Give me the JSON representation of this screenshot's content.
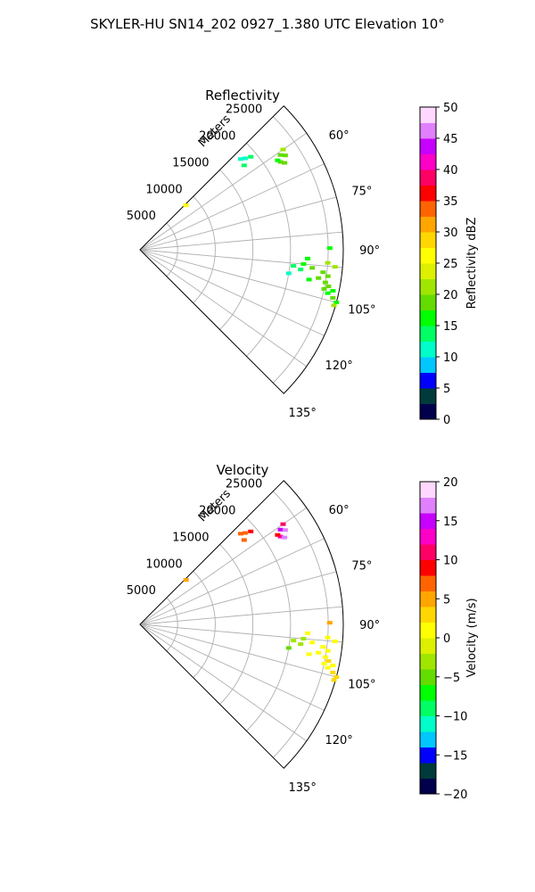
{
  "figure": {
    "suptitle": "SKYLER-HU  SN14_202  0927_1.380 UTC Elevation 10°"
  },
  "chart_data": [
    {
      "type": "scatter",
      "title": "Reflectivity",
      "radial_label": "Meters",
      "radial_ticks": [
        "5000",
        "10000",
        "15000",
        "20000",
        "25000"
      ],
      "radial_tick_values": [
        5000,
        10000,
        15000,
        20000,
        25000
      ],
      "angle_ticks": [
        "60°",
        "75°",
        "90°",
        "105°",
        "120°",
        "135°"
      ],
      "angle_tick_values": [
        60,
        75,
        90,
        105,
        120,
        135
      ],
      "angle_range": [
        45,
        135
      ],
      "range_max": 27000,
      "grid": true,
      "colorbar": {
        "label": "Reflectivity dBZ",
        "ticks": [
          "0",
          "5",
          "10",
          "15",
          "20",
          "25",
          "30",
          "35",
          "40",
          "45",
          "50"
        ],
        "range": [
          0,
          50
        ],
        "colors": [
          "#00004c",
          "#003a3a",
          "#0000ff",
          "#00c8ff",
          "#00ffc8",
          "#00ff64",
          "#00ff00",
          "#64dc00",
          "#a0e600",
          "#dcf000",
          "#ffff00",
          "#ffd700",
          "#ffa500",
          "#ff6400",
          "#ff0000",
          "#ff0064",
          "#ff00c8",
          "#c800ff",
          "#e080ff",
          "#ffd8ff"
        ]
      },
      "series": [
        {
          "points": [
            [
              49,
              18500,
              12
            ],
            [
              50,
              19200,
              13
            ],
            [
              48,
              18000,
              12
            ],
            [
              51,
              17800,
              13
            ]
          ]
        },
        {
          "points": [
            [
              56,
              22500,
              18
            ],
            [
              57,
              23000,
              19
            ],
            [
              58,
              22000,
              18
            ],
            [
              55,
              23200,
              20
            ],
            [
              57,
              21800,
              17
            ],
            [
              59,
              22400,
              18
            ]
          ]
        },
        {
          "points": [
            [
              46,
              8500,
              27
            ]
          ]
        },
        {
          "points": [
            [
              89.5,
              25200,
              15
            ]
          ]
        },
        {
          "points": [
            [
              93,
              22300,
              17
            ],
            [
              95,
              21800,
              16
            ],
            [
              96,
              23000,
              18
            ],
            [
              97,
              24500,
              19
            ],
            [
              94,
              25000,
              20
            ],
            [
              99,
              24000,
              18
            ],
            [
              97,
              21500,
              14
            ],
            [
              100,
              22800,
              17
            ],
            [
              98,
              25200,
              19
            ],
            [
              101,
              25500,
              18
            ],
            [
              95,
              26000,
              20
            ],
            [
              102,
              26200,
              17
            ],
            [
              96,
              20500,
              13
            ],
            [
              99,
              20000,
              12
            ],
            [
              100,
              25000,
              18
            ],
            [
              103,
              25600,
              17
            ],
            [
              102,
              25000,
              18
            ],
            [
              104,
              26400,
              19
            ],
            [
              105,
              27000,
              16
            ],
            [
              106,
              26800,
              22
            ]
          ]
        }
      ]
    },
    {
      "type": "scatter",
      "title": "Velocity",
      "radial_label": "Meters",
      "radial_ticks": [
        "5000",
        "10000",
        "15000",
        "20000",
        "25000"
      ],
      "radial_tick_values": [
        5000,
        10000,
        15000,
        20000,
        25000
      ],
      "angle_ticks": [
        "60°",
        "75°",
        "90°",
        "105°",
        "120°",
        "135°"
      ],
      "angle_tick_values": [
        60,
        75,
        90,
        105,
        120,
        135
      ],
      "angle_range": [
        45,
        135
      ],
      "range_max": 27000,
      "grid": true,
      "colorbar": {
        "label": "Velocity (m/s)",
        "ticks": [
          "−20",
          "−15",
          "−10",
          "−5",
          "0",
          "5",
          "10",
          "15",
          "20"
        ],
        "range": [
          -20,
          20
        ],
        "colors": [
          "#00004c",
          "#003a3a",
          "#0000ff",
          "#00c8ff",
          "#00ffc8",
          "#00ff64",
          "#00ff00",
          "#64dc00",
          "#a0e600",
          "#dcf000",
          "#ffff00",
          "#ffd700",
          "#ffa500",
          "#ff6400",
          "#ff0000",
          "#ff0064",
          "#ff00c8",
          "#c800ff",
          "#e080ff",
          "#ffd8ff"
        ]
      },
      "series": [
        {
          "points": [
            [
              49,
              18500,
              6
            ],
            [
              50,
              19200,
              8
            ],
            [
              48,
              18000,
              7
            ],
            [
              51,
              17800,
              6
            ]
          ]
        },
        {
          "points": [
            [
              56,
              22500,
              14
            ],
            [
              57,
              23000,
              16
            ],
            [
              58,
              22000,
              12
            ],
            [
              55,
              23200,
              10
            ],
            [
              57,
              21800,
              8
            ],
            [
              59,
              22400,
              16
            ]
          ]
        },
        {
          "points": [
            [
              46,
              8500,
              5
            ]
          ]
        },
        {
          "points": [
            [
              89.5,
              25200,
              4
            ]
          ]
        },
        {
          "points": [
            [
              93,
              22300,
              0
            ],
            [
              95,
              21800,
              -3
            ],
            [
              96,
              23000,
              1
            ],
            [
              97,
              24500,
              0
            ],
            [
              94,
              25000,
              1
            ],
            [
              99,
              24000,
              0
            ],
            [
              97,
              21500,
              -3
            ],
            [
              100,
              22800,
              0
            ],
            [
              98,
              25200,
              1
            ],
            [
              101,
              25500,
              2
            ],
            [
              95,
              26000,
              0
            ],
            [
              102,
              26200,
              1
            ],
            [
              96,
              20500,
              -4
            ],
            [
              99,
              20000,
              -5
            ],
            [
              100,
              25000,
              1
            ],
            [
              103,
              25600,
              1
            ],
            [
              102,
              25000,
              0
            ],
            [
              104,
              26400,
              2
            ],
            [
              105,
              27000,
              3
            ],
            [
              106,
              26800,
              2
            ]
          ]
        }
      ]
    }
  ]
}
